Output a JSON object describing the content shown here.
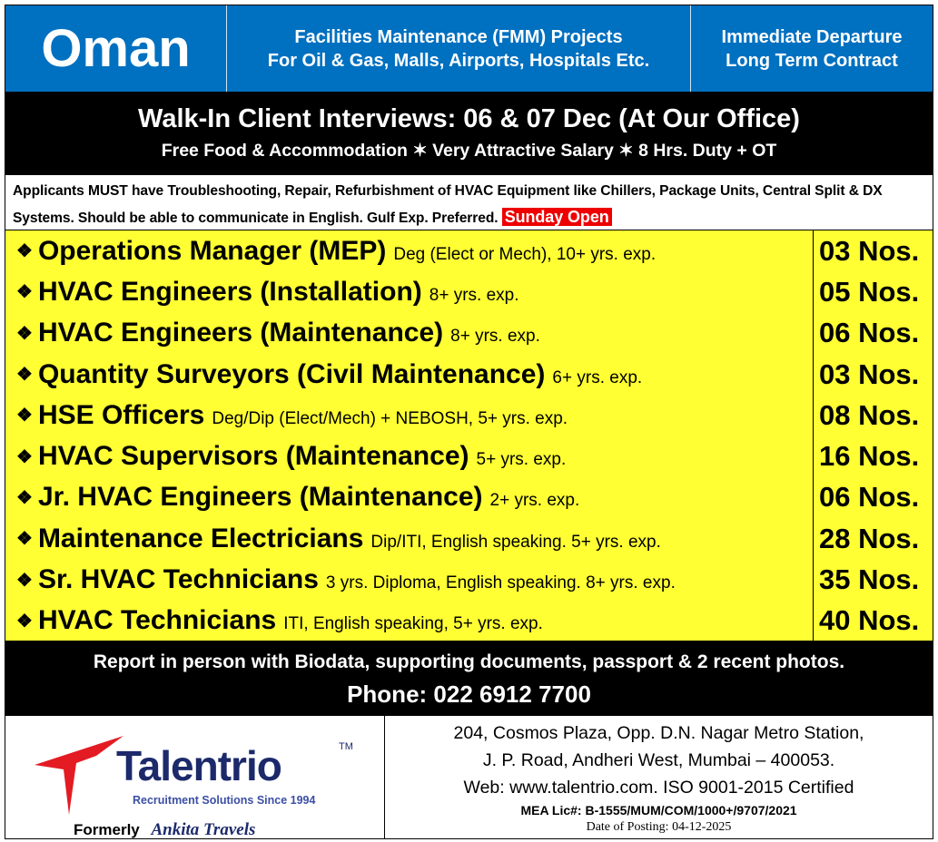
{
  "header": {
    "country": "Oman",
    "project_line1": "Facilities Maintenance (FMM) Projects",
    "project_line2": "For Oil & Gas, Malls, Airports, Hospitals Etc.",
    "departure_line1": "Immediate Departure",
    "departure_line2": "Long Term Contract",
    "color": "#0070C0"
  },
  "banner": {
    "title": "Walk-In Client Interviews: 06 & 07 Dec (At Our Office)",
    "subtitle": "Free Food & Accommodation ✶ Very Attractive Salary ✶ 8 Hrs. Duty + OT"
  },
  "requirements": {
    "text": "Applicants MUST have Troubleshooting, Repair, Refurbishment of HVAC Equipment like Chillers, Package Units, Central Split & DX Systems. Should be able to communicate in English. Gulf Exp. Preferred.",
    "badge": "Sunday Open"
  },
  "jobs": [
    {
      "title": "Operations Manager (MEP)",
      "detail": "Deg (Elect or Mech), 10+ yrs. exp.",
      "count": "03 Nos."
    },
    {
      "title": "HVAC Engineers (Installation)",
      "detail": "8+ yrs. exp.",
      "count": "05 Nos."
    },
    {
      "title": "HVAC Engineers (Maintenance)",
      "detail": "8+ yrs. exp.",
      "count": "06 Nos."
    },
    {
      "title": "Quantity Surveyors (Civil Maintenance)",
      "detail": "6+ yrs. exp.",
      "count": "03 Nos."
    },
    {
      "title": "HSE Officers",
      "detail": "Deg/Dip (Elect/Mech) + NEBOSH, 5+ yrs. exp.",
      "count": "08 Nos."
    },
    {
      "title": "HVAC Supervisors (Maintenance)",
      "detail": "5+ yrs. exp.",
      "count": "16 Nos."
    },
    {
      "title": "Jr. HVAC Engineers (Maintenance)",
      "detail": "2+ yrs. exp.",
      "count": "06 Nos."
    },
    {
      "title": "Maintenance Electricians",
      "detail": "Dip/ITI, English speaking. 5+ yrs. exp.",
      "count": "28 Nos."
    },
    {
      "title": "Sr. HVAC Technicians",
      "detail": "3 yrs. Diploma, English speaking. 8+ yrs. exp.",
      "count": "35 Nos."
    },
    {
      "title": "HVAC Technicians",
      "detail": "ITI, English speaking, 5+ yrs. exp.",
      "count": "40 Nos."
    }
  ],
  "bullet": "❖",
  "footer": {
    "report": "Report in person with Biodata, supporting documents, passport & 2 recent photos.",
    "phone": "Phone: 022 6912 7700"
  },
  "company": {
    "name": "Talentrio",
    "tm": "TM",
    "tagline": "Recruitment Solutions Since 1994",
    "formerly": "Formerly",
    "former_name": "Ankita Travels",
    "address1": "204, Cosmos Plaza, Opp. D.N. Nagar Metro Station,",
    "address2": "J. P. Road, Andheri West, Mumbai – 400053.",
    "web": "Web: www.talentrio.com. ISO 9001-2015 Certified",
    "license": "MEA Lic#: B-1555/MUM/COM/1000+/9707/2021",
    "posted": "Date of Posting: 04-12-2025"
  }
}
